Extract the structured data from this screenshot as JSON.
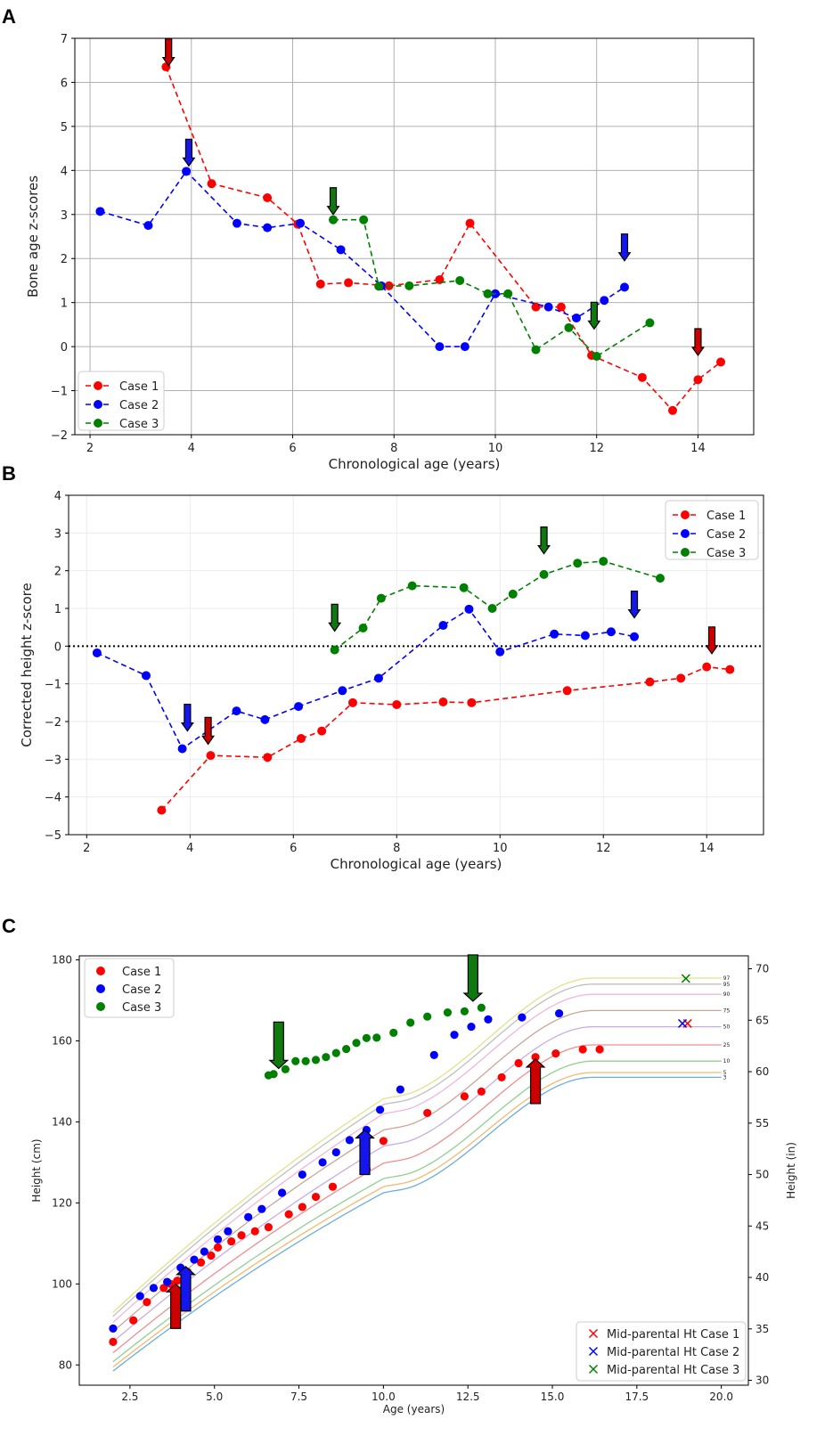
{
  "panels": {
    "A": {
      "label": "A",
      "chart_data": {
        "type": "line",
        "xlabel": "Chronological age (years)",
        "ylabel": "Bone age z-scores",
        "xlim": [
          1.7,
          15.1
        ],
        "ylim": [
          -2,
          7
        ],
        "xticks": [
          2,
          4,
          6,
          8,
          10,
          12,
          14
        ],
        "yticks": [
          -2,
          -1,
          0,
          1,
          2,
          3,
          4,
          5,
          6,
          7
        ],
        "grid": true,
        "legend_position": "lower-left",
        "series": [
          {
            "name": "Case 1",
            "color": "#ff0000",
            "x": [
              3.5,
              4.4,
              5.5,
              6.1,
              6.55,
              7.1,
              7.9,
              8.9,
              9.5,
              10.8,
              11.3,
              11.9,
              12.9,
              13.5,
              14.0,
              14.45
            ],
            "y": [
              6.35,
              3.7,
              3.38,
              2.78,
              1.42,
              1.45,
              1.38,
              1.52,
              2.8,
              0.9,
              0.9,
              -0.2,
              -0.7,
              -1.45,
              -0.75,
              -0.35
            ]
          },
          {
            "name": "Case 2",
            "color": "#0000ff",
            "x": [
              2.2,
              3.15,
              3.9,
              4.9,
              5.5,
              6.15,
              6.95,
              7.75,
              8.9,
              9.4,
              10.0,
              11.05,
              11.6,
              12.15,
              12.55
            ],
            "y": [
              3.07,
              2.75,
              3.98,
              2.8,
              2.7,
              2.8,
              2.2,
              1.38,
              0.0,
              0.0,
              1.2,
              0.9,
              0.65,
              1.05,
              1.35
            ]
          },
          {
            "name": "Case 3",
            "color": "#008000",
            "x": [
              6.8,
              7.4,
              7.7,
              8.3,
              9.3,
              9.85,
              10.25,
              10.8,
              11.45,
              12.0,
              13.05
            ],
            "y": [
              2.88,
              2.88,
              1.37,
              1.38,
              1.5,
              1.2,
              1.2,
              -0.07,
              0.43,
              -0.22,
              0.54
            ]
          }
        ],
        "arrows": [
          {
            "color": "#cc0000",
            "x": 3.55,
            "y": 6.38
          },
          {
            "color": "#1515ee",
            "x": 3.95,
            "y": 4.1
          },
          {
            "color": "#117711",
            "x": 6.8,
            "y": 3.0
          },
          {
            "color": "#1515ee",
            "x": 12.55,
            "y": 1.95
          },
          {
            "color": "#117711",
            "x": 11.95,
            "y": 0.4
          },
          {
            "color": "#cc0000",
            "x": 14.0,
            "y": -0.2
          }
        ]
      }
    },
    "B": {
      "label": "B",
      "chart_data": {
        "type": "line",
        "xlabel": "Chronological age (years)",
        "ylabel": "Corrected height z-score",
        "xlim": [
          1.65,
          15.1
        ],
        "ylim": [
          -5,
          4
        ],
        "xticks": [
          2,
          4,
          6,
          8,
          10,
          12,
          14
        ],
        "yticks": [
          -5,
          -4,
          -3,
          -2,
          -1,
          0,
          1,
          2,
          3,
          4
        ],
        "grid": true,
        "reference_line_y": 0,
        "legend_position": "upper-right",
        "series": [
          {
            "name": "Case 1",
            "color": "#ff0000",
            "x": [
              3.45,
              4.4,
              5.5,
              6.15,
              6.55,
              7.15,
              8.0,
              8.9,
              9.45,
              11.3,
              12.9,
              13.5,
              14.0,
              14.45
            ],
            "y": [
              -4.35,
              -2.9,
              -2.95,
              -2.45,
              -2.25,
              -1.5,
              -1.55,
              -1.48,
              -1.5,
              -1.18,
              -0.95,
              -0.85,
              -0.55,
              -0.62
            ]
          },
          {
            "name": "Case 2",
            "color": "#0000ff",
            "x": [
              2.2,
              3.15,
              3.85,
              4.9,
              5.45,
              6.1,
              6.95,
              7.65,
              8.9,
              9.4,
              10.0,
              11.05,
              11.65,
              12.15,
              12.6
            ],
            "y": [
              -0.18,
              -0.78,
              -2.72,
              -1.72,
              -1.95,
              -1.6,
              -1.18,
              -0.85,
              0.55,
              0.98,
              -0.15,
              0.32,
              0.28,
              0.38,
              0.25
            ]
          },
          {
            "name": "Case 3",
            "color": "#008000",
            "x": [
              6.8,
              7.35,
              7.7,
              8.3,
              9.3,
              9.85,
              10.25,
              10.85,
              11.5,
              12.0,
              13.1
            ],
            "y": [
              -0.1,
              0.48,
              1.27,
              1.6,
              1.55,
              1.0,
              1.38,
              1.9,
              2.2,
              2.25,
              1.8
            ]
          }
        ],
        "arrows": [
          {
            "color": "#117711",
            "x": 10.85,
            "y": 2.45
          },
          {
            "color": "#1515ee",
            "x": 12.6,
            "y": 0.75
          },
          {
            "color": "#117711",
            "x": 6.8,
            "y": 0.4
          },
          {
            "color": "#cc0000",
            "x": 14.1,
            "y": -0.2
          },
          {
            "color": "#1515ee",
            "x": 3.95,
            "y": -2.25
          },
          {
            "color": "#cc0000",
            "x": 4.35,
            "y": -2.6
          }
        ]
      }
    },
    "C": {
      "label": "C",
      "chart_data": {
        "type": "scatter",
        "xlabel": "Age (years)",
        "ylabel": "Height (cm)",
        "ylabel_right": "Height (in)",
        "xlim": [
          1.0,
          20.8
        ],
        "ylim": [
          75,
          181
        ],
        "xticks": [
          2.5,
          5.0,
          7.5,
          10.0,
          12.5,
          15.0,
          17.5,
          20.0
        ],
        "xtick_labels": [
          "2.5",
          "5.0",
          "7.5",
          "10.0",
          "12.5",
          "15.0",
          "17.5",
          "20.0"
        ],
        "yticks": [
          80,
          100,
          120,
          140,
          160,
          180
        ],
        "yticks_right": [
          30,
          35,
          40,
          45,
          50,
          55,
          60,
          65,
          70
        ],
        "grid": false,
        "legend_position": "upper-left",
        "legend2_position": "lower-right",
        "percentile_curves": [
          {
            "label": "3",
            "color": "#6aaede",
            "h2": 78.5,
            "h10": 122.5,
            "h20": 151.0
          },
          {
            "label": "5",
            "color": "#f5b870",
            "h2": 79.5,
            "h10": 124.0,
            "h20": 152.2
          },
          {
            "label": "10",
            "color": "#8fd08f",
            "h2": 80.8,
            "h10": 126.0,
            "h20": 155.0
          },
          {
            "label": "25",
            "color": "#ee8f8f",
            "h2": 83.0,
            "h10": 129.8,
            "h20": 159.0
          },
          {
            "label": "50",
            "color": "#c6aee0",
            "h2": 85.7,
            "h10": 134.0,
            "h20": 163.5
          },
          {
            "label": "75",
            "color": "#c8a79a",
            "h2": 88.2,
            "h10": 138.0,
            "h20": 167.5
          },
          {
            "label": "90",
            "color": "#f0b6dc",
            "h2": 90.5,
            "h10": 142.0,
            "h20": 171.5
          },
          {
            "label": "95",
            "color": "#bfbfbf",
            "h2": 92.0,
            "h10": 144.3,
            "h20": 174.0
          },
          {
            "label": "97",
            "color": "#e2e28c",
            "h2": 93.0,
            "h10": 145.7,
            "h20": 175.5
          }
        ],
        "series": [
          {
            "name": "Case 1",
            "color": "#ff0000",
            "x": [
              2.0,
              2.6,
              3.0,
              3.5,
              3.7,
              3.9,
              4.2,
              4.6,
              4.9,
              5.1,
              5.5,
              5.8,
              6.2,
              6.6,
              7.2,
              7.6,
              8.0,
              8.5,
              9.5,
              10.0,
              11.3,
              12.4,
              12.9,
              13.5,
              14.0,
              14.5,
              15.1,
              15.9,
              16.4
            ],
            "y": [
              85.7,
              91.0,
              95.5,
              99.0,
              100.0,
              100.8,
              103.0,
              105.3,
              107.0,
              109.0,
              110.5,
              112.0,
              113.0,
              114.0,
              117.2,
              119.0,
              121.5,
              124.0,
              128.3,
              135.3,
              142.2,
              146.3,
              147.5,
              151.0,
              154.5,
              156.0,
              156.9,
              157.9,
              157.9
            ]
          },
          {
            "name": "Case 2",
            "color": "#0000ff",
            "x": [
              2.0,
              2.8,
              3.2,
              3.6,
              4.0,
              4.4,
              4.7,
              5.1,
              5.4,
              6.0,
              6.4,
              7.0,
              7.6,
              8.2,
              8.6,
              9.0,
              9.5,
              9.9,
              10.5,
              11.5,
              12.1,
              12.6,
              13.1,
              14.1,
              15.2
            ],
            "y": [
              89.0,
              97.0,
              99.0,
              100.5,
              104.0,
              106.0,
              108.0,
              111.0,
              113.0,
              116.5,
              118.5,
              122.5,
              127.0,
              130.0,
              132.5,
              135.5,
              138.0,
              143.0,
              148.0,
              156.5,
              161.5,
              163.5,
              165.3,
              165.8,
              166.8
            ]
          },
          {
            "name": "Case 3",
            "color": "#008000",
            "x": [
              6.6,
              6.75,
              7.1,
              7.4,
              7.7,
              8.0,
              8.3,
              8.6,
              8.9,
              9.2,
              9.5,
              9.8,
              10.3,
              10.8,
              11.3,
              11.9,
              12.4,
              12.9
            ],
            "y": [
              151.5,
              151.8,
              153.0,
              155.0,
              155.0,
              155.3,
              156.0,
              157.0,
              158.0,
              159.5,
              160.7,
              160.8,
              162.0,
              164.5,
              166.0,
              167.0,
              167.3,
              168.2
            ]
          }
        ],
        "midparental": [
          {
            "name": "Mid-parental Ht Case 1",
            "color": "#ff0000",
            "x": 19.0,
            "y": 164.3
          },
          {
            "name": "Mid-parental Ht Case 2",
            "color": "#0000ff",
            "x": 18.85,
            "y": 164.3
          },
          {
            "name": "Mid-parental Ht Case 3",
            "color": "#008000",
            "x": 18.95,
            "y": 175.4
          }
        ],
        "arrows": [
          {
            "color": "#cc0000",
            "x": 3.85,
            "y": 100.0,
            "dir": "up"
          },
          {
            "color": "#1515ee",
            "x": 4.15,
            "y": 104.3,
            "dir": "up"
          },
          {
            "color": "#117711",
            "x": 6.9,
            "y": 153.2,
            "dir": "down"
          },
          {
            "color": "#1515ee",
            "x": 9.45,
            "y": 138.0,
            "dir": "up"
          },
          {
            "color": "#117711",
            "x": 12.65,
            "y": 169.8,
            "dir": "down"
          },
          {
            "color": "#cc0000",
            "x": 14.5,
            "y": 155.5,
            "dir": "up"
          }
        ]
      }
    }
  }
}
